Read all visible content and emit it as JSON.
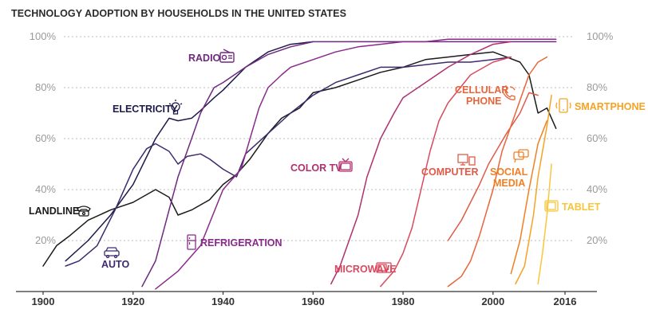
{
  "title": "TECHNOLOGY ADOPTION BY HOUSEHOLDS IN THE UNITED STATES",
  "chart_data": {
    "type": "line",
    "title": "TECHNOLOGY ADOPTION BY HOUSEHOLDS IN THE UNITED STATES",
    "xlabel": "",
    "ylabel": "",
    "xlim": [
      1900,
      2018
    ],
    "ylim": [
      0,
      100
    ],
    "x_ticks": [
      1900,
      1920,
      1940,
      1960,
      1980,
      2000,
      2016
    ],
    "x_tick_labels": [
      "1900",
      "1920",
      "1940",
      "1960",
      "1980",
      "2000",
      "2016"
    ],
    "y_ticks": [
      20,
      40,
      60,
      80,
      100
    ],
    "y_tick_labels": [
      "20%",
      "40%",
      "60%",
      "80%",
      "100%"
    ],
    "grid": true,
    "series": [
      {
        "name": "LANDLINE",
        "color": "#1b1b1b",
        "x": [
          1900,
          1903,
          1906,
          1910,
          1915,
          1920,
          1923,
          1925,
          1928,
          1930,
          1933,
          1937,
          1940,
          1943,
          1946,
          1950,
          1953,
          1957,
          1960,
          1965,
          1970,
          1975,
          1980,
          1985,
          1990,
          1995,
          2000,
          2003,
          2006,
          2008,
          2010,
          2012,
          2014
        ],
        "y": [
          10,
          18,
          22,
          28,
          32,
          35,
          38,
          40,
          37,
          30,
          32,
          36,
          42,
          46,
          52,
          62,
          68,
          72,
          78,
          80,
          83,
          86,
          88,
          91,
          92,
          93,
          94,
          92,
          90,
          85,
          70,
          72,
          64
        ]
      },
      {
        "name": "ELECTRICITY",
        "color": "#1e1a4a",
        "x": [
          1905,
          1910,
          1915,
          1920,
          1925,
          1928,
          1930,
          1933,
          1935,
          1938,
          1940,
          1945,
          1950,
          1955,
          1960
        ],
        "y": [
          12,
          20,
          30,
          42,
          60,
          68,
          67,
          68,
          71,
          76,
          79,
          88,
          94,
          97,
          98
        ]
      },
      {
        "name": "AUTO",
        "color": "#3d2a6e",
        "x": [
          1905,
          1908,
          1912,
          1916,
          1920,
          1923,
          1925,
          1928,
          1930,
          1932,
          1935,
          1937,
          1940,
          1943,
          1945,
          1950,
          1955,
          1960,
          1965,
          1970,
          1975,
          1980,
          1985,
          1990,
          1995,
          2000,
          2004
        ],
        "y": [
          10,
          12,
          18,
          32,
          48,
          56,
          58,
          55,
          50,
          53,
          54,
          52,
          48,
          45,
          54,
          62,
          70,
          77,
          82,
          85,
          88,
          88,
          89,
          90,
          90,
          91,
          92
        ]
      },
      {
        "name": "RADIO",
        "color": "#6e2a7e",
        "x": [
          1922,
          1925,
          1928,
          1930,
          1933,
          1935,
          1938,
          1940,
          1945,
          1950,
          1955,
          1960,
          1965,
          1970,
          1975,
          1980,
          1990,
          2000,
          2010,
          2014
        ],
        "y": [
          2,
          12,
          32,
          45,
          60,
          70,
          80,
          82,
          88,
          93,
          96,
          98,
          98,
          98,
          98,
          98,
          98,
          98,
          98,
          98
        ]
      },
      {
        "name": "REFRIGERATION",
        "color": "#8a2a8a",
        "x": [
          1925,
          1930,
          1935,
          1940,
          1944,
          1946,
          1948,
          1950,
          1953,
          1955,
          1960,
          1965,
          1970,
          1975,
          1980,
          1985,
          1990,
          2000,
          2010,
          2014
        ],
        "y": [
          1,
          8,
          18,
          40,
          48,
          60,
          72,
          80,
          85,
          88,
          91,
          94,
          96,
          97,
          98,
          98,
          99,
          99,
          99,
          99
        ]
      },
      {
        "name": "COLOR TV",
        "color": "#b0306e",
        "x": [
          1964,
          1966,
          1968,
          1970,
          1972,
          1975,
          1978,
          1980,
          1985,
          1990,
          1995,
          2000,
          2004
        ],
        "y": [
          3,
          10,
          20,
          30,
          45,
          60,
          70,
          76,
          82,
          88,
          93,
          97,
          98
        ]
      },
      {
        "name": "MICROWAVE",
        "color": "#d84a5e",
        "x": [
          1975,
          1978,
          1980,
          1982,
          1984,
          1986,
          1988,
          1990,
          1995,
          2000,
          2004
        ],
        "y": [
          2,
          8,
          15,
          25,
          40,
          55,
          67,
          74,
          85,
          90,
          92
        ]
      },
      {
        "name": "COMPUTER",
        "color": "#e05a48",
        "x": [
          1990,
          1993,
          1995,
          1997,
          1999,
          2001,
          2003,
          2006,
          2008,
          2010
        ],
        "y": [
          20,
          28,
          35,
          42,
          50,
          56,
          62,
          70,
          78,
          77
        ]
      },
      {
        "name": "CELLULAR PHONE",
        "color": "#e8643a",
        "x": [
          1990,
          1993,
          1995,
          1997,
          2000,
          2002,
          2004,
          2006,
          2008,
          2010,
          2012
        ],
        "y": [
          2,
          6,
          12,
          22,
          40,
          55,
          65,
          75,
          85,
          90,
          92
        ]
      },
      {
        "name": "SOCIAL MEDIA",
        "color": "#f07f24",
        "x": [
          2004,
          2006,
          2008,
          2010,
          2012
        ],
        "y": [
          7,
          20,
          40,
          58,
          67
        ]
      },
      {
        "name": "SMARTPHONE",
        "color": "#f5a324",
        "x": [
          2005,
          2007,
          2009,
          2010,
          2011,
          2012,
          2013
        ],
        "y": [
          3,
          10,
          30,
          45,
          55,
          65,
          77
        ]
      },
      {
        "name": "TABLET",
        "color": "#f8c63a",
        "x": [
          2010,
          2011,
          2012,
          2013
        ],
        "y": [
          3,
          15,
          30,
          50
        ]
      }
    ],
    "annotations": [
      {
        "series": "RADIO",
        "text": "RADIO",
        "icon": "radio-icon"
      },
      {
        "series": "ELECTRICITY",
        "text": "ELECTRICITY",
        "icon": "lightbulb-icon"
      },
      {
        "series": "LANDLINE",
        "text": "LANDLINE",
        "icon": "telephone-icon"
      },
      {
        "series": "AUTO",
        "text": "AUTO",
        "icon": "car-icon"
      },
      {
        "series": "REFRIGERATION",
        "text": "REFRIGERATION",
        "icon": "refrigerator-icon"
      },
      {
        "series": "COLOR TV",
        "text": "COLOR TV",
        "icon": "television-icon"
      },
      {
        "series": "MICROWAVE",
        "text": "MICROWAVE",
        "icon": "microwave-icon"
      },
      {
        "series": "COMPUTER",
        "text": "COMPUTER",
        "icon": "computer-icon"
      },
      {
        "series": "CELLULAR PHONE",
        "text": "CELLULAR PHONE",
        "lines": [
          "CELLULAR",
          "PHONE"
        ],
        "icon": "cellphone-icon"
      },
      {
        "series": "SOCIAL MEDIA",
        "text": "SOCIAL MEDIA",
        "lines": [
          "SOCIAL",
          "MEDIA"
        ],
        "icon": "chat-icon"
      },
      {
        "series": "SMARTPHONE",
        "text": "SMARTPHONE",
        "icon": "smartphone-icon"
      },
      {
        "series": "TABLET",
        "text": "TABLET",
        "icon": "tablet-icon"
      }
    ]
  }
}
